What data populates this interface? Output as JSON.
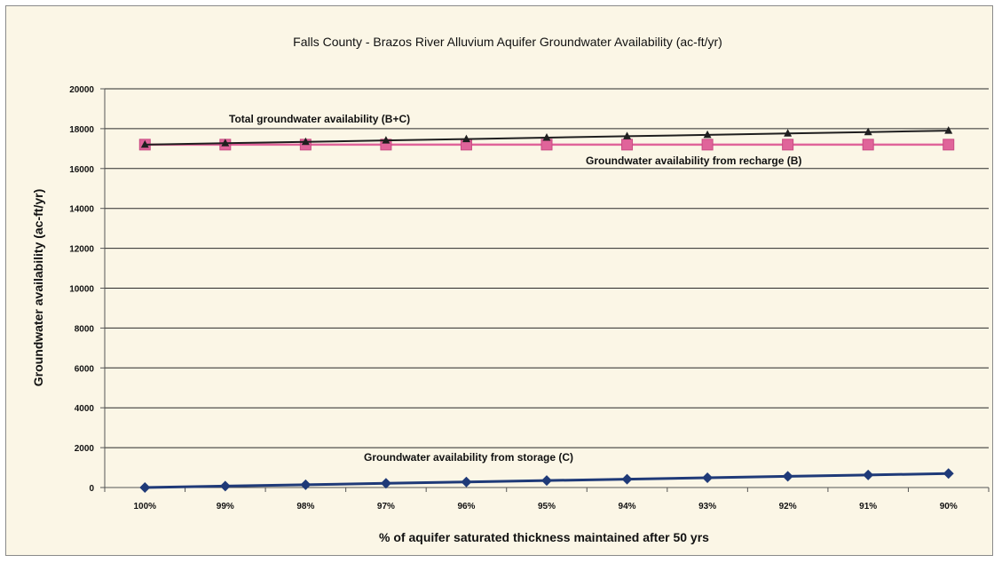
{
  "chart_data": {
    "type": "line",
    "title": "Falls County - Brazos River Alluvium Aquifer Groundwater Availability (ac-ft/yr)",
    "xlabel": "% of aquifer saturated thickness maintained after 50 yrs",
    "ylabel": "Groundwater availability (ac-ft/yr)",
    "categories": [
      "100%",
      "99%",
      "98%",
      "97%",
      "96%",
      "95%",
      "94%",
      "93%",
      "92%",
      "91%",
      "90%"
    ],
    "ylim": [
      0,
      20000
    ],
    "yticks": [
      "0",
      "2000",
      "4000",
      "6000",
      "8000",
      "10000",
      "12000",
      "14000",
      "16000",
      "18000",
      "20000"
    ],
    "grid": true,
    "series": [
      {
        "name": "Total groundwater availability (B+C)",
        "values": [
          17200,
          17270,
          17340,
          17410,
          17480,
          17550,
          17620,
          17690,
          17760,
          17830,
          17900
        ],
        "color": "#1f1f1f",
        "marker": "triangle"
      },
      {
        "name": "Groundwater availability from recharge (B)",
        "values": [
          17200,
          17200,
          17200,
          17200,
          17200,
          17200,
          17200,
          17200,
          17200,
          17200,
          17200
        ],
        "color": "#e0649a",
        "marker": "square"
      },
      {
        "name": "Groundwater availability from storage (C)",
        "values": [
          0,
          70,
          140,
          210,
          280,
          350,
          420,
          490,
          560,
          630,
          700
        ],
        "color": "#1f3a78",
        "marker": "diamond"
      }
    ]
  }
}
